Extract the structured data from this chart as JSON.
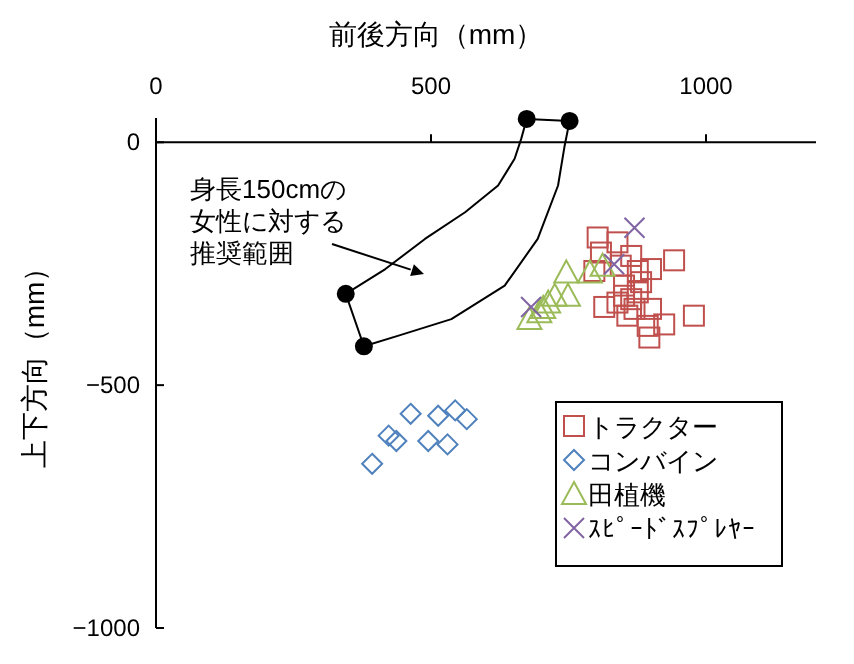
{
  "chart_data": {
    "type": "scatter",
    "xlabel": "前後方向（mm）",
    "ylabel": "上下方向（mm）",
    "xlim": [
      0,
      1200
    ],
    "ylim": [
      -1000,
      50
    ],
    "xticks": [
      0,
      500,
      1000
    ],
    "yticks": [
      0,
      -500,
      -1000
    ],
    "legend": "bottom right",
    "grid": false,
    "annotations": [
      "身長150cmの女性に対する推奨範囲"
    ],
    "series": [
      {
        "type": "line",
        "color": "#000000",
        "marker": "none",
        "x": [
          345,
          417,
          489,
          562,
          622,
          652,
          664,
          674,
          752
        ],
        "values": [
          -312,
          -261,
          -199,
          -144,
          -89,
          -34,
          7,
          48,
          44
        ]
      },
      {
        "type": "line",
        "color": "#000000",
        "marker": "none",
        "x": [
          345,
          378,
          441,
          537,
          634,
          694,
          731,
          743,
          752
        ],
        "values": [
          -312,
          -420,
          -398,
          -364,
          -295,
          -199,
          -89,
          -7,
          44
        ]
      },
      {
        "type": "scatter",
        "color": "#000000",
        "marker": "circle",
        "x": [
          674,
          752,
          345,
          378
        ],
        "values": [
          48,
          44,
          -312,
          -420
        ]
      },
      {
        "name": "トラクター",
        "color": "#c0504d",
        "marker": "square",
        "x": [
          803,
          839,
          809,
          864,
          942,
          797,
          845,
          876,
          900,
          851,
          876,
          839,
          870,
          815,
          857,
          900,
          894,
          924,
          978,
          897,
          864,
          882,
          851
        ],
        "values": [
          -196,
          -206,
          -227,
          -234,
          -243,
          -265,
          -254,
          -265,
          -261,
          -295,
          -309,
          -330,
          -343,
          -339,
          -357,
          -343,
          -378,
          -375,
          -357,
          -402,
          -323,
          -288,
          -316
        ]
      },
      {
        "name": "コンバイン",
        "color": "#4f81bd",
        "marker": "diamond",
        "x": [
          393,
          423,
          437,
          463,
          495,
          513,
          530,
          544,
          565
        ],
        "values": [
          -662,
          -604,
          -615,
          -559,
          -615,
          -563,
          -622,
          -552,
          -570
        ]
      },
      {
        "name": "田植機",
        "color": "#9bbb59",
        "marker": "triangle",
        "x": [
          679,
          697,
          713,
          725,
          746,
          749,
          789,
          812,
          704
        ],
        "values": [
          -364,
          -350,
          -330,
          -316,
          -268,
          -316,
          -268,
          -254,
          -341
        ]
      },
      {
        "name": "ｽﾋﾟｰﾄﾞｽﾌﾟﾚﾔｰ",
        "color": "#8064a2",
        "marker": "cross",
        "x": [
          870,
          833,
          682
        ],
        "values": [
          -176,
          -251,
          -339
        ]
      }
    ]
  }
}
